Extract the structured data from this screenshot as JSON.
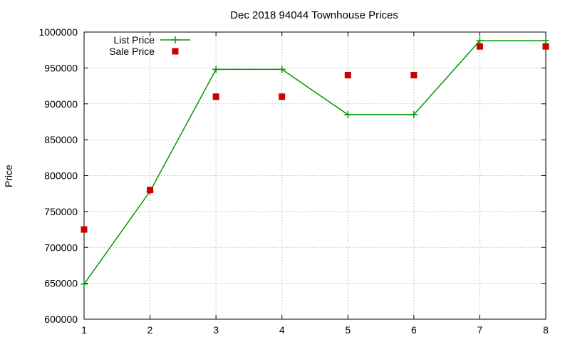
{
  "chart_data": {
    "type": "line",
    "title": "Dec 2018 94044 Townhouse Prices",
    "xlabel": "",
    "ylabel": "Price",
    "xlim": [
      1,
      8
    ],
    "ylim": [
      600000,
      1000000
    ],
    "x_ticks": [
      "1",
      "2",
      "3",
      "4",
      "5",
      "6",
      "7",
      "8"
    ],
    "y_ticks": [
      "600000",
      "650000",
      "700000",
      "750000",
      "800000",
      "850000",
      "900000",
      "950000",
      "1000000"
    ],
    "grid": true,
    "legend_position": "top-left",
    "series": [
      {
        "name": "List Price",
        "style": "line-with-plus-markers",
        "color": "#009900",
        "x": [
          1,
          2,
          3,
          4,
          5,
          6,
          7,
          8
        ],
        "values": [
          649000,
          778000,
          948000,
          948000,
          885000,
          885000,
          988000,
          988000
        ]
      },
      {
        "name": "Sale Price",
        "style": "square-markers",
        "color": "#cc0000",
        "x": [
          1,
          2,
          3,
          4,
          5,
          6,
          7,
          8
        ],
        "values": [
          725000,
          780000,
          910000,
          910000,
          940000,
          940000,
          980000,
          980000
        ]
      }
    ]
  }
}
